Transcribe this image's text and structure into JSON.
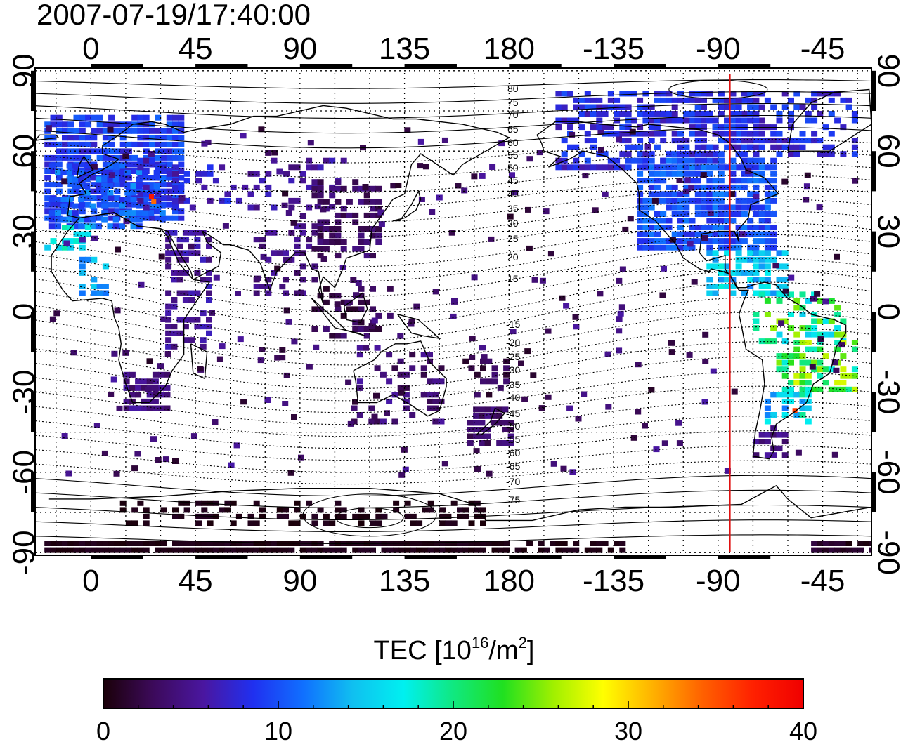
{
  "title": "2007-07-19/17:40:00",
  "map": {
    "x_ticks": [
      "0",
      "45",
      "90",
      "135",
      "180",
      "-135",
      "-90",
      "-45"
    ],
    "x_tick_lon": [
      0,
      45,
      90,
      135,
      180,
      225,
      270,
      315
    ],
    "y_ticks": [
      "90",
      "60",
      "30",
      "0",
      "-30",
      "-60",
      "-90"
    ],
    "y_tick_lat": [
      90,
      60,
      30,
      0,
      -30,
      -60,
      -90
    ],
    "lon_range": [
      -24,
      336
    ],
    "lat_range": [
      -91,
      91
    ],
    "grid": "dotted, every 15 degrees",
    "magnetic_lat_labels_north": [
      "80",
      "75",
      "70",
      "65",
      "60",
      "55",
      "50",
      "45",
      "40",
      "35",
      "30",
      "25",
      "20",
      "15"
    ],
    "magnetic_lat_labels_south": [
      "-15",
      "-20",
      "-25",
      "-30",
      "-35",
      "-40",
      "-45",
      "-50",
      "-55",
      "-60",
      "-65",
      "-70",
      "-75"
    ],
    "marker_line": {
      "longitude": -85,
      "color": "#e01010"
    }
  },
  "colorbar": {
    "label_main": "TEC  [10",
    "label_sup1": "16",
    "label_mid": "/m",
    "label_sup2": "2",
    "label_end": "]",
    "ticks": [
      "0",
      "10",
      "20",
      "30",
      "40"
    ],
    "range": [
      0,
      40
    ],
    "colors": [
      "#1a0008",
      "#3c0a5a",
      "#4a16a0",
      "#2030f0",
      "#1070ff",
      "#10c0f0",
      "#00f0f0",
      "#10e880",
      "#20e020",
      "#a0f000",
      "#ffff00",
      "#ffb000",
      "#ff6000",
      "#ff2000",
      "#f00000"
    ]
  }
}
